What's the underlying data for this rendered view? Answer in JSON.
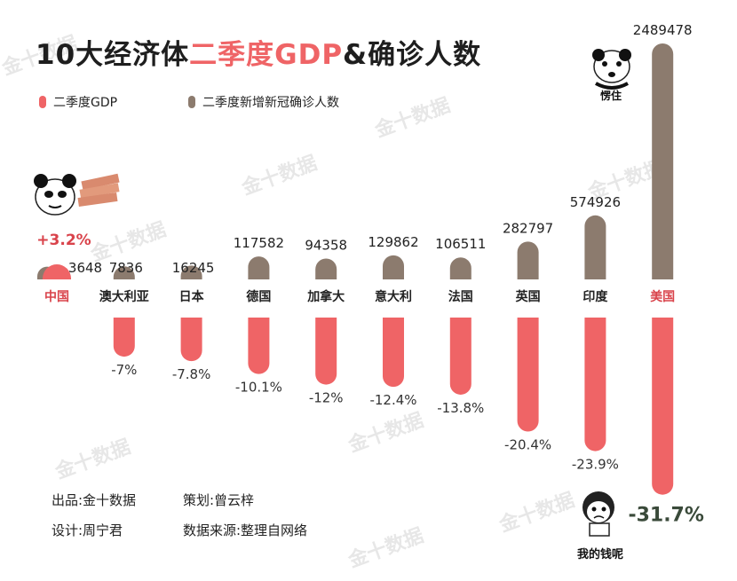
{
  "title": {
    "part1": "10大经济体",
    "part2": "二季度GDP",
    "part3": "&确诊人数"
  },
  "legend": [
    {
      "label": "二季度GDP",
      "color": "#ef6466"
    },
    {
      "label": "二季度新增新冠确诊人数",
      "color": "#8c7b6e"
    }
  ],
  "credits": {
    "producer": "出品:金十数据",
    "planner": "策划:曾云梓",
    "designer": "设计:周宁君",
    "source": "数据来源:整理自网络"
  },
  "emoji_captions": {
    "us_top": "愣住",
    "us_bottom": "我的钱呢"
  },
  "watermark": "金十数据",
  "colors": {
    "gdp_bar": "#ef6466",
    "cases_bar": "#8c7b6e",
    "highlight_label": "#d9434b",
    "gdp_positive_text": "#d9434b",
    "gdp_negative_text": "#333333",
    "us_gdp_text": "#3a4a3a"
  },
  "chart_data": {
    "type": "bar",
    "categories": [
      "中国",
      "澳大利亚",
      "日本",
      "德国",
      "加拿大",
      "意大利",
      "法国",
      "英国",
      "印度",
      "美国"
    ],
    "highlighted_categories": [
      "中国",
      "美国"
    ],
    "series": [
      {
        "name": "二季度GDP",
        "unit": "%",
        "values": [
          3.2,
          -7,
          -7.8,
          -10.1,
          -12,
          -12.4,
          -13.8,
          -20.4,
          -23.9,
          -31.7
        ],
        "labels": [
          "+3.2%",
          "-7%",
          "-7.8%",
          "-10.1%",
          "-12%",
          "-12.4%",
          "-13.8%",
          "-20.4%",
          "-23.9%",
          "-31.7%"
        ]
      },
      {
        "name": "二季度新增新冠确诊人数",
        "values": [
          3648,
          7836,
          16245,
          117582,
          94358,
          129862,
          106511,
          282797,
          574926,
          2489478
        ],
        "labels": [
          "3648",
          "7836",
          "16245",
          "117582",
          "94358",
          "129862",
          "106511",
          "282797",
          "574926",
          "2489478"
        ]
      }
    ]
  }
}
